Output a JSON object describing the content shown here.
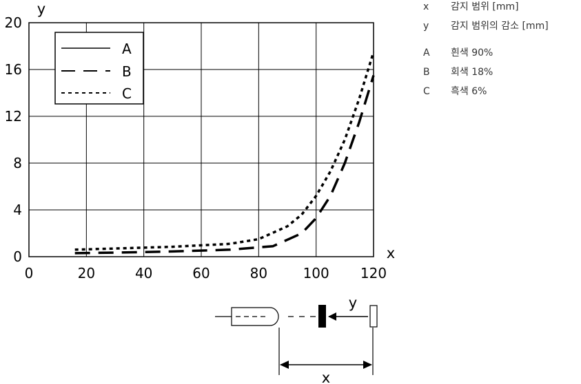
{
  "chart_data": {
    "type": "line",
    "xlabel": "x",
    "ylabel": "y",
    "xlim": [
      0,
      120
    ],
    "ylim": [
      0,
      20
    ],
    "x_ticks": [
      "0",
      "20",
      "40",
      "60",
      "80",
      "100",
      "120"
    ],
    "y_ticks": [
      "0",
      "4",
      "8",
      "12",
      "16",
      "20"
    ],
    "grid": true,
    "legend_position": "top-left",
    "series": [
      {
        "name": "A",
        "style": "solid",
        "x": [],
        "y": []
      },
      {
        "name": "B",
        "style": "dashed",
        "x": [
          16,
          30,
          50,
          70,
          85,
          95,
          100,
          105,
          110,
          115,
          120
        ],
        "y": [
          0.3,
          0.35,
          0.45,
          0.6,
          0.9,
          2.0,
          3.3,
          5.2,
          8.0,
          11.5,
          15.5
        ]
      },
      {
        "name": "C",
        "style": "dotted",
        "x": [
          16,
          30,
          50,
          70,
          80,
          90,
          95,
          100,
          105,
          110,
          115,
          120
        ],
        "y": [
          0.6,
          0.7,
          0.85,
          1.1,
          1.5,
          2.6,
          3.6,
          5.2,
          7.3,
          10.0,
          13.5,
          17.5
        ]
      }
    ]
  },
  "glossary": [
    {
      "key": "x",
      "text": "감지 범위 [mm]"
    },
    {
      "key": "y",
      "text": "감지 범위의 감소 [mm]"
    },
    {
      "key": "A",
      "text": "흰색 90%"
    },
    {
      "key": "B",
      "text": "회색 18%"
    },
    {
      "key": "C",
      "text": "흑색 6%"
    }
  ],
  "diagram": {
    "y_label": "y",
    "x_label": "x"
  }
}
